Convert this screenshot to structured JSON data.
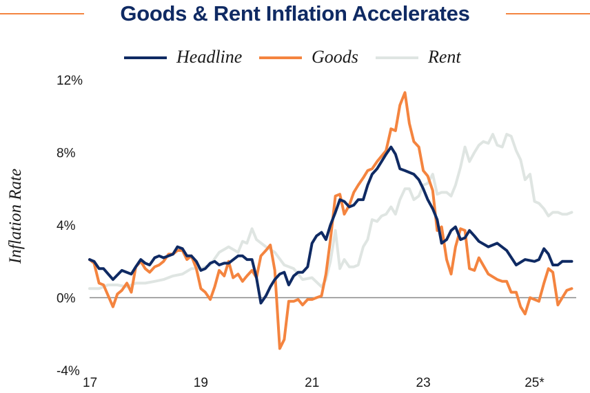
{
  "chart_data": {
    "type": "line",
    "title": "Goods & Rent Inflation Accelerates",
    "ylabel": "Inflation Rate",
    "xlabel": "",
    "ylim": [
      -4,
      12
    ],
    "y_ticks": [
      "12%",
      "8%",
      "4%",
      "0%",
      "-4%"
    ],
    "y_tick_values": [
      12,
      8,
      4,
      0,
      -4
    ],
    "x_ticks": [
      "17",
      "19",
      "21",
      "23",
      "25*"
    ],
    "x_tick_values": [
      2017.0,
      2019.0,
      2021.0,
      2023.0,
      2025.0
    ],
    "xlim": [
      2017.0,
      2025.75
    ],
    "legend_position": "top-center",
    "zero_line": true,
    "series": [
      {
        "name": "Headline",
        "color": "#0f2a63",
        "x": [
          2017.0,
          2017.08,
          2017.17,
          2017.25,
          2017.42,
          2017.58,
          2017.75,
          2017.83,
          2017.92,
          2018.0,
          2018.08,
          2018.17,
          2018.25,
          2018.33,
          2018.5,
          2018.58,
          2018.67,
          2018.75,
          2018.83,
          2018.92,
          2019.0,
          2019.08,
          2019.17,
          2019.25,
          2019.33,
          2019.42,
          2019.5,
          2019.67,
          2019.75,
          2019.83,
          2019.92,
          2020.0,
          2020.08,
          2020.17,
          2020.25,
          2020.33,
          2020.42,
          2020.5,
          2020.58,
          2020.67,
          2020.75,
          2020.83,
          2020.92,
          2021.0,
          2021.08,
          2021.17,
          2021.25,
          2021.33,
          2021.42,
          2021.5,
          2021.58,
          2021.67,
          2021.75,
          2021.83,
          2021.92,
          2022.0,
          2022.08,
          2022.17,
          2022.25,
          2022.33,
          2022.42,
          2022.5,
          2022.58,
          2022.67,
          2022.75,
          2022.83,
          2022.92,
          2023.0,
          2023.08,
          2023.17,
          2023.25,
          2023.33,
          2023.42,
          2023.5,
          2023.58,
          2023.67,
          2023.75,
          2023.83,
          2023.92,
          2024.0,
          2024.17,
          2024.33,
          2024.5,
          2024.67,
          2024.83,
          2025.0,
          2025.08,
          2025.17,
          2025.25,
          2025.33,
          2025.42,
          2025.5,
          2025.58,
          2025.67
        ],
        "values": [
          2.1,
          2.0,
          1.6,
          1.6,
          1.0,
          1.5,
          1.3,
          1.7,
          2.1,
          1.9,
          1.8,
          2.2,
          2.3,
          2.2,
          2.4,
          2.8,
          2.7,
          2.3,
          2.3,
          2.0,
          1.5,
          1.6,
          1.9,
          2.0,
          1.8,
          1.9,
          1.9,
          2.3,
          2.3,
          2.1,
          2.1,
          1.1,
          -0.3,
          0.1,
          0.6,
          1.0,
          1.3,
          1.4,
          0.7,
          1.2,
          1.4,
          1.4,
          1.7,
          3.0,
          3.4,
          3.6,
          3.2,
          4.0,
          4.7,
          5.4,
          5.3,
          5.0,
          5.1,
          5.4,
          5.4,
          6.2,
          6.8,
          7.1,
          7.5,
          7.9,
          8.3,
          7.9,
          7.1,
          7.0,
          6.9,
          6.8,
          6.5,
          6.0,
          5.4,
          4.9,
          4.3,
          3.0,
          3.2,
          3.7,
          3.9,
          3.2,
          3.3,
          3.7,
          3.4,
          3.1,
          2.8,
          3.0,
          2.6,
          1.8,
          2.1,
          2.0,
          2.1,
          2.7,
          2.4,
          1.8,
          1.8,
          2.0,
          2.0,
          2.0
        ],
        "note_x_range": "2017 to 2025"
      },
      {
        "name": "Goods",
        "color": "#f4843f",
        "x": [
          2017.0,
          2017.08,
          2017.17,
          2017.25,
          2017.42,
          2017.5,
          2017.58,
          2017.67,
          2017.75,
          2017.83,
          2017.92,
          2018.0,
          2018.08,
          2018.17,
          2018.25,
          2018.33,
          2018.42,
          2018.5,
          2018.58,
          2018.67,
          2018.75,
          2018.83,
          2018.92,
          2019.0,
          2019.08,
          2019.17,
          2019.25,
          2019.33,
          2019.42,
          2019.5,
          2019.58,
          2019.67,
          2019.75,
          2019.83,
          2019.92,
          2020.0,
          2020.08,
          2020.17,
          2020.25,
          2020.33,
          2020.42,
          2020.5,
          2020.58,
          2020.67,
          2020.75,
          2020.83,
          2020.92,
          2021.0,
          2021.08,
          2021.17,
          2021.25,
          2021.33,
          2021.42,
          2021.5,
          2021.58,
          2021.67,
          2021.75,
          2021.83,
          2021.92,
          2022.0,
          2022.08,
          2022.17,
          2022.25,
          2022.33,
          2022.42,
          2022.5,
          2022.58,
          2022.67,
          2022.75,
          2022.83,
          2022.92,
          2023.0,
          2023.08,
          2023.17,
          2023.25,
          2023.33,
          2023.42,
          2023.5,
          2023.58,
          2023.67,
          2023.75,
          2023.83,
          2023.92,
          2024.0,
          2024.17,
          2024.33,
          2024.42,
          2024.5,
          2024.58,
          2024.67,
          2024.75,
          2024.83,
          2024.92,
          2025.0,
          2025.08,
          2025.17,
          2025.25,
          2025.33,
          2025.42,
          2025.5,
          2025.58,
          2025.67
        ],
        "values": [
          2.1,
          1.9,
          0.8,
          0.7,
          -0.5,
          0.2,
          0.4,
          0.8,
          0.3,
          1.7,
          2.0,
          1.6,
          1.4,
          1.7,
          1.8,
          2.0,
          2.4,
          2.4,
          2.6,
          2.6,
          2.1,
          2.3,
          1.6,
          0.5,
          0.3,
          -0.1,
          0.6,
          1.5,
          1.2,
          2.0,
          1.1,
          1.3,
          0.9,
          1.2,
          1.5,
          1.1,
          2.3,
          2.6,
          2.9,
          1.5,
          -2.8,
          -2.3,
          -0.2,
          -0.2,
          -0.1,
          -0.4,
          -0.1,
          -0.1,
          0.0,
          0.1,
          1.3,
          3.2,
          5.6,
          5.7,
          4.6,
          5.1,
          5.8,
          6.2,
          6.6,
          7.0,
          7.1,
          7.5,
          7.8,
          8.1,
          9.3,
          9.2,
          10.6,
          11.3,
          9.6,
          8.6,
          8.3,
          7.0,
          6.7,
          5.9,
          3.7,
          3.9,
          2.1,
          1.3,
          2.8,
          3.8,
          3.7,
          1.6,
          1.5,
          2.2,
          1.3,
          1.0,
          0.9,
          0.9,
          0.3,
          0.3,
          -0.5,
          -0.9,
          0.0,
          -0.1,
          -0.2,
          0.8,
          1.6,
          1.4,
          -0.4,
          0.0,
          0.4,
          0.5
        ]
      },
      {
        "name": "Rent",
        "color": "#dfe5e2",
        "x": [
          2017.0,
          2017.17,
          2017.33,
          2017.5,
          2017.67,
          2017.83,
          2018.0,
          2018.17,
          2018.33,
          2018.5,
          2018.67,
          2018.83,
          2019.0,
          2019.17,
          2019.33,
          2019.5,
          2019.67,
          2019.75,
          2019.83,
          2019.92,
          2020.0,
          2020.17,
          2020.33,
          2020.5,
          2020.67,
          2020.83,
          2021.0,
          2021.17,
          2021.25,
          2021.33,
          2021.42,
          2021.5,
          2021.58,
          2021.67,
          2021.75,
          2021.83,
          2021.92,
          2022.0,
          2022.08,
          2022.17,
          2022.25,
          2022.33,
          2022.42,
          2022.5,
          2022.58,
          2022.67,
          2022.75,
          2022.83,
          2022.92,
          2023.0,
          2023.08,
          2023.17,
          2023.25,
          2023.33,
          2023.42,
          2023.5,
          2023.58,
          2023.67,
          2023.75,
          2023.83,
          2023.92,
          2024.0,
          2024.08,
          2024.17,
          2024.25,
          2024.33,
          2024.42,
          2024.5,
          2024.58,
          2024.67,
          2024.75,
          2024.83,
          2024.92,
          2025.0,
          2025.08,
          2025.17,
          2025.25,
          2025.33,
          2025.42,
          2025.5,
          2025.58,
          2025.67
        ],
        "values": [
          0.5,
          0.5,
          0.7,
          0.7,
          0.6,
          0.8,
          0.8,
          0.9,
          1.0,
          1.2,
          1.3,
          1.6,
          1.6,
          1.8,
          2.5,
          2.8,
          2.5,
          3.1,
          3.0,
          3.8,
          3.2,
          2.8,
          2.5,
          1.8,
          1.6,
          1.0,
          1.1,
          0.6,
          1.0,
          2.0,
          3.7,
          1.6,
          2.1,
          1.7,
          1.7,
          1.8,
          2.8,
          3.2,
          4.3,
          4.2,
          4.5,
          4.6,
          5.0,
          4.6,
          5.4,
          6.0,
          6.0,
          5.4,
          5.6,
          6.2,
          6.3,
          6.8,
          5.7,
          5.8,
          5.8,
          5.6,
          6.2,
          7.2,
          8.3,
          7.5,
          8.0,
          8.4,
          8.6,
          8.5,
          9.0,
          8.4,
          8.3,
          9.0,
          8.9,
          8.1,
          7.6,
          6.5,
          6.8,
          5.3,
          5.2,
          4.9,
          4.5,
          4.7,
          4.7,
          4.6,
          4.6,
          4.7
        ]
      }
    ]
  }
}
